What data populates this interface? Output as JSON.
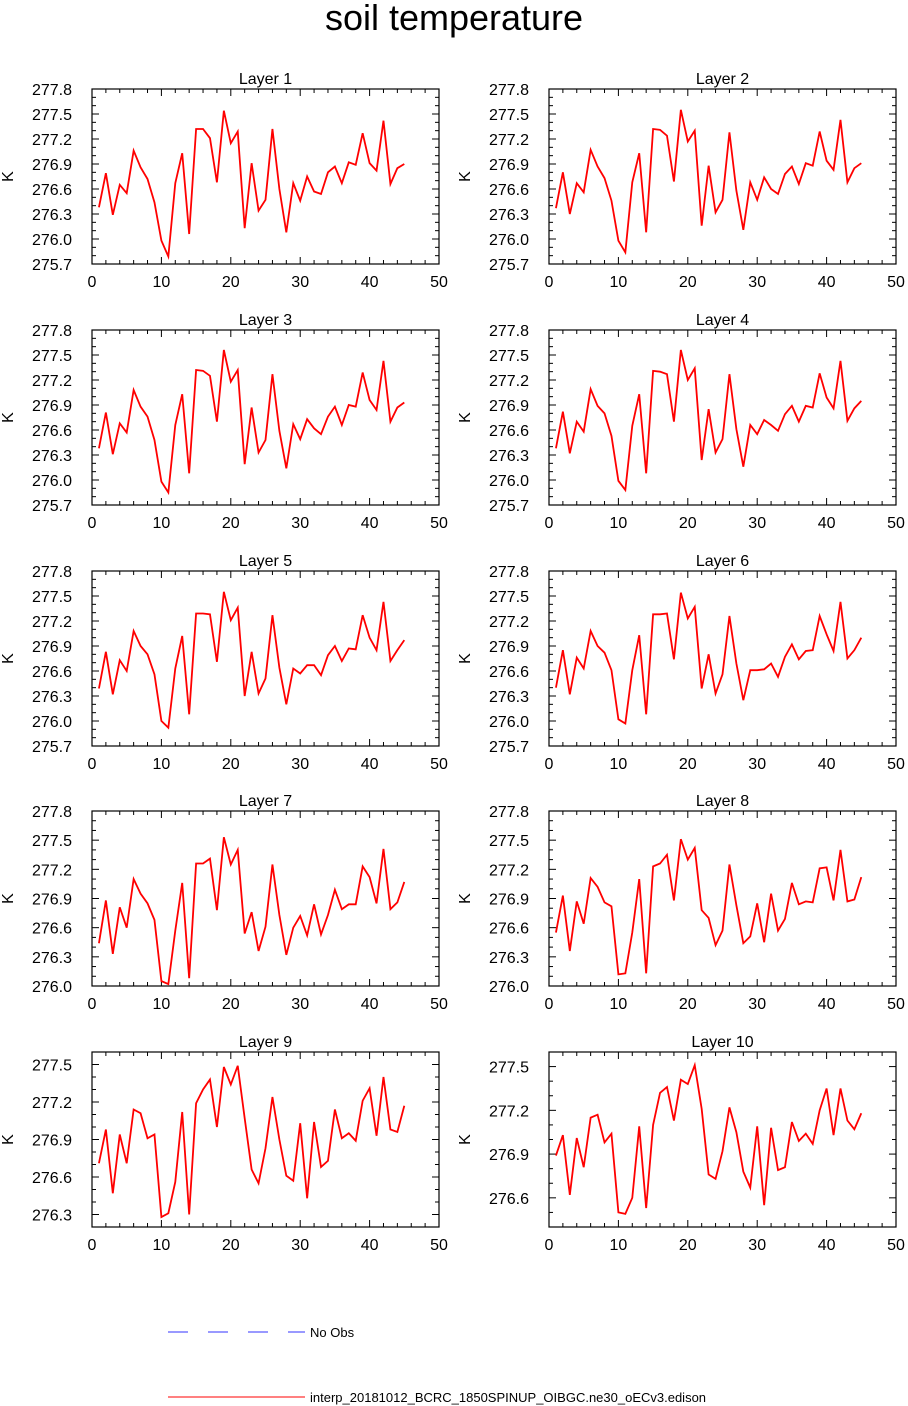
{
  "title": "soil temperature",
  "colors": {
    "model_line": "#ff0000",
    "obs_line": "#3333ff",
    "axis": "#000000"
  },
  "legend": {
    "obs_label": "No Obs",
    "model_label": "interp_20181012_BCRC_1850SPINUP_OIBGC.ne30_oECv3.edison"
  },
  "chart_data": [
    {
      "type": "line",
      "title": "Layer 1",
      "ylabel": "K",
      "xlim": [
        0,
        50
      ],
      "ylim": [
        275.7,
        277.8
      ],
      "yticks": [
        275.7,
        276.0,
        276.3,
        276.6,
        276.9,
        277.2,
        277.5,
        277.8
      ],
      "x_start": 1,
      "series": [
        {
          "values": [
            276.38,
            276.79,
            276.29,
            276.65,
            276.55,
            277.06,
            276.86,
            276.72,
            276.44,
            275.98,
            275.79,
            276.67,
            277.03,
            276.06,
            277.32,
            277.32,
            277.21,
            276.68,
            277.54,
            277.15,
            277.29,
            276.13,
            276.91,
            276.34,
            276.47,
            277.32,
            276.6,
            276.08,
            276.67,
            276.46,
            276.75,
            276.57,
            276.54,
            276.8,
            276.87,
            276.67,
            276.92,
            276.89,
            277.27,
            276.91,
            276.82,
            277.42,
            276.66,
            276.85,
            276.9
          ]
        }
      ]
    },
    {
      "type": "line",
      "title": "Layer 2",
      "ylabel": "K",
      "xlim": [
        0,
        50
      ],
      "ylim": [
        275.7,
        277.8
      ],
      "yticks": [
        275.7,
        276.0,
        276.3,
        276.6,
        276.9,
        277.2,
        277.5,
        277.8
      ],
      "x_start": 1,
      "series": [
        {
          "values": [
            276.37,
            276.8,
            276.3,
            276.67,
            276.56,
            277.07,
            276.87,
            276.73,
            276.46,
            275.98,
            275.84,
            276.68,
            277.03,
            276.08,
            277.32,
            277.31,
            277.24,
            276.69,
            277.55,
            277.17,
            277.3,
            276.16,
            276.88,
            276.32,
            276.47,
            277.28,
            276.58,
            276.11,
            276.68,
            276.47,
            276.74,
            276.6,
            276.54,
            276.78,
            276.87,
            276.66,
            276.91,
            276.88,
            277.29,
            276.94,
            276.83,
            277.43,
            276.68,
            276.85,
            276.91
          ]
        }
      ]
    },
    {
      "type": "line",
      "title": "Layer 3",
      "ylabel": "K",
      "xlim": [
        0,
        50
      ],
      "ylim": [
        275.7,
        277.8
      ],
      "yticks": [
        275.7,
        276.0,
        276.3,
        276.6,
        276.9,
        277.2,
        277.5,
        277.8
      ],
      "x_start": 1,
      "series": [
        {
          "values": [
            276.38,
            276.81,
            276.31,
            276.68,
            276.57,
            277.08,
            276.88,
            276.76,
            276.48,
            275.98,
            275.85,
            276.66,
            277.03,
            276.08,
            277.32,
            277.31,
            277.25,
            276.7,
            277.56,
            277.18,
            277.32,
            276.19,
            276.87,
            276.33,
            276.48,
            277.27,
            276.59,
            276.14,
            276.67,
            276.49,
            276.73,
            276.62,
            276.55,
            276.76,
            276.88,
            276.66,
            276.9,
            276.88,
            277.29,
            276.96,
            276.84,
            277.43,
            276.7,
            276.87,
            276.93
          ]
        }
      ]
    },
    {
      "type": "line",
      "title": "Layer 4",
      "ylabel": "K",
      "xlim": [
        0,
        50
      ],
      "ylim": [
        275.7,
        277.8
      ],
      "yticks": [
        275.7,
        276.0,
        276.3,
        276.6,
        276.9,
        277.2,
        277.5,
        277.8
      ],
      "x_start": 1,
      "series": [
        {
          "values": [
            276.38,
            276.82,
            276.32,
            276.7,
            276.58,
            277.09,
            276.89,
            276.8,
            276.53,
            275.99,
            275.88,
            276.65,
            277.03,
            276.08,
            277.31,
            277.3,
            277.27,
            276.7,
            277.56,
            277.2,
            277.34,
            276.24,
            276.85,
            276.33,
            276.49,
            277.27,
            276.61,
            276.16,
            276.66,
            276.55,
            276.72,
            276.66,
            276.59,
            276.79,
            276.89,
            276.7,
            276.89,
            276.87,
            277.28,
            276.99,
            276.86,
            277.43,
            276.71,
            276.86,
            276.95
          ]
        }
      ]
    },
    {
      "type": "line",
      "title": "Layer 5",
      "ylabel": "K",
      "xlim": [
        0,
        50
      ],
      "ylim": [
        275.7,
        277.8
      ],
      "yticks": [
        275.7,
        276.0,
        276.3,
        276.6,
        276.9,
        277.2,
        277.5,
        277.8
      ],
      "x_start": 1,
      "series": [
        {
          "values": [
            276.39,
            276.83,
            276.32,
            276.73,
            276.6,
            277.08,
            276.9,
            276.8,
            276.56,
            276.0,
            275.92,
            276.63,
            277.02,
            276.08,
            277.29,
            277.29,
            277.28,
            276.71,
            277.55,
            277.21,
            277.36,
            276.3,
            276.83,
            276.33,
            276.51,
            277.27,
            276.64,
            276.2,
            276.63,
            276.57,
            276.67,
            276.67,
            276.55,
            276.79,
            276.9,
            276.72,
            276.87,
            276.86,
            277.27,
            277.0,
            276.85,
            277.43,
            276.72,
            276.85,
            276.97
          ]
        }
      ]
    },
    {
      "type": "line",
      "title": "Layer 6",
      "ylabel": "K",
      "xlim": [
        0,
        50
      ],
      "ylim": [
        275.7,
        277.8
      ],
      "yticks": [
        275.7,
        276.0,
        276.3,
        276.6,
        276.9,
        277.2,
        277.5,
        277.8
      ],
      "x_start": 1,
      "series": [
        {
          "values": [
            276.4,
            276.85,
            276.32,
            276.76,
            276.63,
            277.08,
            276.9,
            276.82,
            276.61,
            276.02,
            275.97,
            276.61,
            277.03,
            276.08,
            277.28,
            277.28,
            277.29,
            276.74,
            277.54,
            277.23,
            277.37,
            276.39,
            276.8,
            276.33,
            276.56,
            277.26,
            276.69,
            276.25,
            276.61,
            276.61,
            276.62,
            276.69,
            276.53,
            276.77,
            276.92,
            276.74,
            276.84,
            276.85,
            277.26,
            277.04,
            276.84,
            277.43,
            276.75,
            276.85,
            277.0
          ]
        }
      ]
    },
    {
      "type": "line",
      "title": "Layer 7",
      "ylabel": "K",
      "xlim": [
        0,
        50
      ],
      "ylim": [
        276.0,
        277.8
      ],
      "yticks": [
        276.0,
        276.3,
        276.6,
        276.9,
        277.2,
        277.5,
        277.8
      ],
      "x_start": 1,
      "series": [
        {
          "values": [
            276.44,
            276.88,
            276.33,
            276.81,
            276.6,
            277.1,
            276.95,
            276.85,
            276.68,
            276.05,
            276.02,
            276.57,
            277.06,
            276.08,
            277.26,
            277.26,
            277.31,
            276.78,
            277.53,
            277.25,
            277.4,
            276.54,
            276.76,
            276.36,
            276.61,
            277.25,
            276.73,
            276.32,
            276.6,
            276.72,
            276.52,
            276.84,
            276.53,
            276.73,
            276.99,
            276.79,
            276.84,
            276.84,
            277.23,
            277.12,
            276.85,
            277.41,
            276.79,
            276.86,
            277.07
          ]
        }
      ]
    },
    {
      "type": "line",
      "title": "Layer 8",
      "ylabel": "K",
      "xlim": [
        0,
        50
      ],
      "ylim": [
        276.0,
        277.8
      ],
      "yticks": [
        276.0,
        276.3,
        276.6,
        276.9,
        277.2,
        277.5,
        277.8
      ],
      "x_start": 1,
      "series": [
        {
          "values": [
            276.55,
            276.93,
            276.36,
            276.87,
            276.64,
            277.11,
            277.02,
            276.86,
            276.82,
            276.12,
            276.13,
            276.55,
            277.1,
            276.13,
            277.23,
            277.26,
            277.35,
            276.88,
            277.51,
            277.3,
            277.42,
            276.78,
            276.7,
            276.42,
            276.57,
            277.25,
            276.83,
            276.44,
            276.51,
            276.85,
            276.45,
            276.95,
            276.57,
            276.69,
            277.06,
            276.84,
            276.87,
            276.86,
            277.21,
            277.22,
            276.88,
            277.4,
            276.87,
            276.89,
            277.12
          ]
        }
      ]
    },
    {
      "type": "line",
      "title": "Layer 9",
      "ylabel": "K",
      "xlim": [
        0,
        50
      ],
      "ylim": [
        276.2,
        277.6
      ],
      "yticks": [
        276.3,
        276.6,
        276.9,
        277.2,
        277.5
      ],
      "x_start": 1,
      "series": [
        {
          "values": [
            276.71,
            276.98,
            276.47,
            276.94,
            276.71,
            277.14,
            277.11,
            276.91,
            276.94,
            276.28,
            276.31,
            276.56,
            277.12,
            276.3,
            277.19,
            277.3,
            277.38,
            277.0,
            277.48,
            277.34,
            277.49,
            277.07,
            276.66,
            276.55,
            276.83,
            277.24,
            276.9,
            276.61,
            276.57,
            277.03,
            276.43,
            277.04,
            276.68,
            276.73,
            277.14,
            276.91,
            276.95,
            276.89,
            277.21,
            277.31,
            276.93,
            277.4,
            276.98,
            276.96,
            277.17
          ]
        }
      ]
    },
    {
      "type": "line",
      "title": "Layer 10",
      "ylabel": "K",
      "xlim": [
        0,
        50
      ],
      "ylim": [
        276.4,
        277.6
      ],
      "yticks": [
        276.6,
        276.9,
        277.2,
        277.5
      ],
      "x_start": 1,
      "series": [
        {
          "values": [
            276.89,
            277.03,
            276.62,
            277.01,
            276.81,
            277.15,
            277.17,
            276.98,
            277.04,
            276.5,
            276.49,
            276.6,
            277.09,
            276.53,
            277.1,
            277.32,
            277.36,
            277.13,
            277.41,
            277.38,
            277.51,
            277.21,
            276.76,
            276.73,
            276.92,
            277.22,
            277.05,
            276.78,
            276.67,
            277.09,
            276.55,
            277.08,
            276.79,
            276.81,
            277.12,
            276.99,
            277.04,
            276.97,
            277.2,
            277.35,
            277.03,
            277.35,
            277.13,
            277.07,
            277.18
          ]
        }
      ]
    }
  ]
}
